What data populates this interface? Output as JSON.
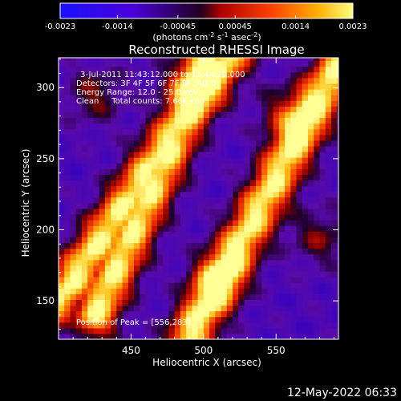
{
  "chart_data": {
    "type": "heatmap",
    "title": "Reconstructed RHESSI Image",
    "xlabel": "Heliocentric X (arcsec)",
    "ylabel": "Heliocentric Y (arcsec)",
    "xlim": [
      400,
      593
    ],
    "ylim": [
      123,
      321
    ],
    "xticks": [
      450,
      500,
      550
    ],
    "yticks": [
      150,
      200,
      250,
      300
    ],
    "colorbar": {
      "ticks": [
        "-0.0023",
        "-0.0014",
        "-0.00045",
        "0.00045",
        "0.0014",
        "0.0023"
      ],
      "tick_values": [
        -0.0023,
        -0.0014,
        -0.00045,
        0.00045,
        0.0014,
        0.0023
      ],
      "range": [
        -0.0023,
        0.0023
      ],
      "unit_label_parts": [
        "(photons cm",
        "-2",
        " s",
        "-1",
        " asec",
        "-2",
        ")"
      ]
    },
    "annotations": [
      "3-Jul-2011 11:43:12.000 to 11:44:20.000",
      "Detectors: 3F 4F 5F 6F 7F 8F, Att 0",
      "Energy Range: 12.0 - 25.0 keV",
      "Clean     Total counts: 7.66E+03"
    ],
    "peak_label": "Position of Peak = [556,283]",
    "peak": [
      556,
      283
    ],
    "bright_ridges": [
      {
        "from": [
          400,
          150
        ],
        "to": [
          525,
          335
        ]
      },
      {
        "from": [
          425,
          140
        ],
        "to": [
          505,
          320
        ]
      },
      {
        "from": [
          490,
          125
        ],
        "to": [
          595,
          320
        ]
      }
    ],
    "hotspots": [
      [
        556,
        283
      ],
      [
        490,
        305
      ],
      [
        510,
        165
      ],
      [
        425,
        295
      ],
      [
        580,
        195
      ]
    ]
  },
  "footer_timestamp": "12-May-2022 06:33"
}
